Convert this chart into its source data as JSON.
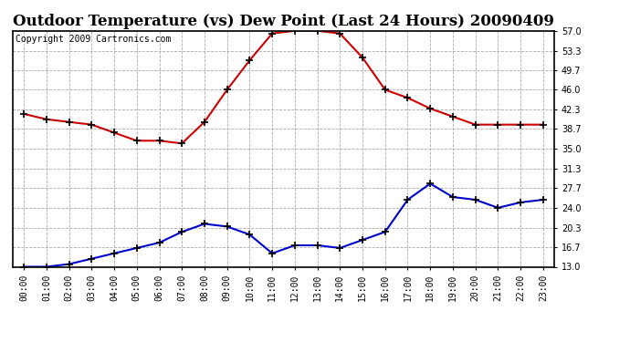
{
  "title": "Outdoor Temperature (vs) Dew Point (Last 24 Hours) 20090409",
  "copyright": "Copyright 2009 Cartronics.com",
  "x_labels": [
    "00:00",
    "01:00",
    "02:00",
    "03:00",
    "04:00",
    "05:00",
    "06:00",
    "07:00",
    "08:00",
    "09:00",
    "10:00",
    "11:00",
    "12:00",
    "13:00",
    "14:00",
    "15:00",
    "16:00",
    "17:00",
    "18:00",
    "19:00",
    "20:00",
    "21:00",
    "22:00",
    "23:00"
  ],
  "temp_data": [
    41.5,
    40.5,
    40.0,
    39.5,
    38.0,
    36.5,
    36.5,
    36.0,
    40.0,
    46.0,
    51.5,
    56.5,
    57.0,
    57.0,
    56.5,
    52.0,
    46.0,
    44.5,
    42.5,
    41.0,
    39.5,
    39.5,
    39.5,
    39.5
  ],
  "dew_data": [
    13.0,
    13.0,
    13.5,
    14.5,
    15.5,
    16.5,
    17.5,
    19.5,
    21.0,
    20.5,
    19.0,
    15.5,
    17.0,
    17.0,
    16.5,
    18.0,
    19.5,
    25.5,
    28.5,
    26.0,
    25.5,
    24.0,
    25.0,
    25.5
  ],
  "temp_color": "#cc0000",
  "dew_color": "#0000cc",
  "marker": "+",
  "marker_size": 6,
  "line_width": 1.5,
  "ylim": [
    13.0,
    57.0
  ],
  "yticks": [
    13.0,
    16.7,
    20.3,
    24.0,
    27.7,
    31.3,
    35.0,
    38.7,
    42.3,
    46.0,
    49.7,
    53.3,
    57.0
  ],
  "ytick_labels": [
    "13.0",
    "16.7",
    "20.3",
    "24.0",
    "27.7",
    "31.3",
    "35.0",
    "38.7",
    "42.3",
    "46.0",
    "49.7",
    "53.3",
    "57.0"
  ],
  "grid_color": "#aaaaaa",
  "grid_linestyle": "--",
  "background_color": "#ffffff",
  "plot_bg_color": "#ffffff",
  "title_fontsize": 12,
  "copyright_fontsize": 7,
  "tick_fontsize": 7,
  "border_color": "#000000"
}
